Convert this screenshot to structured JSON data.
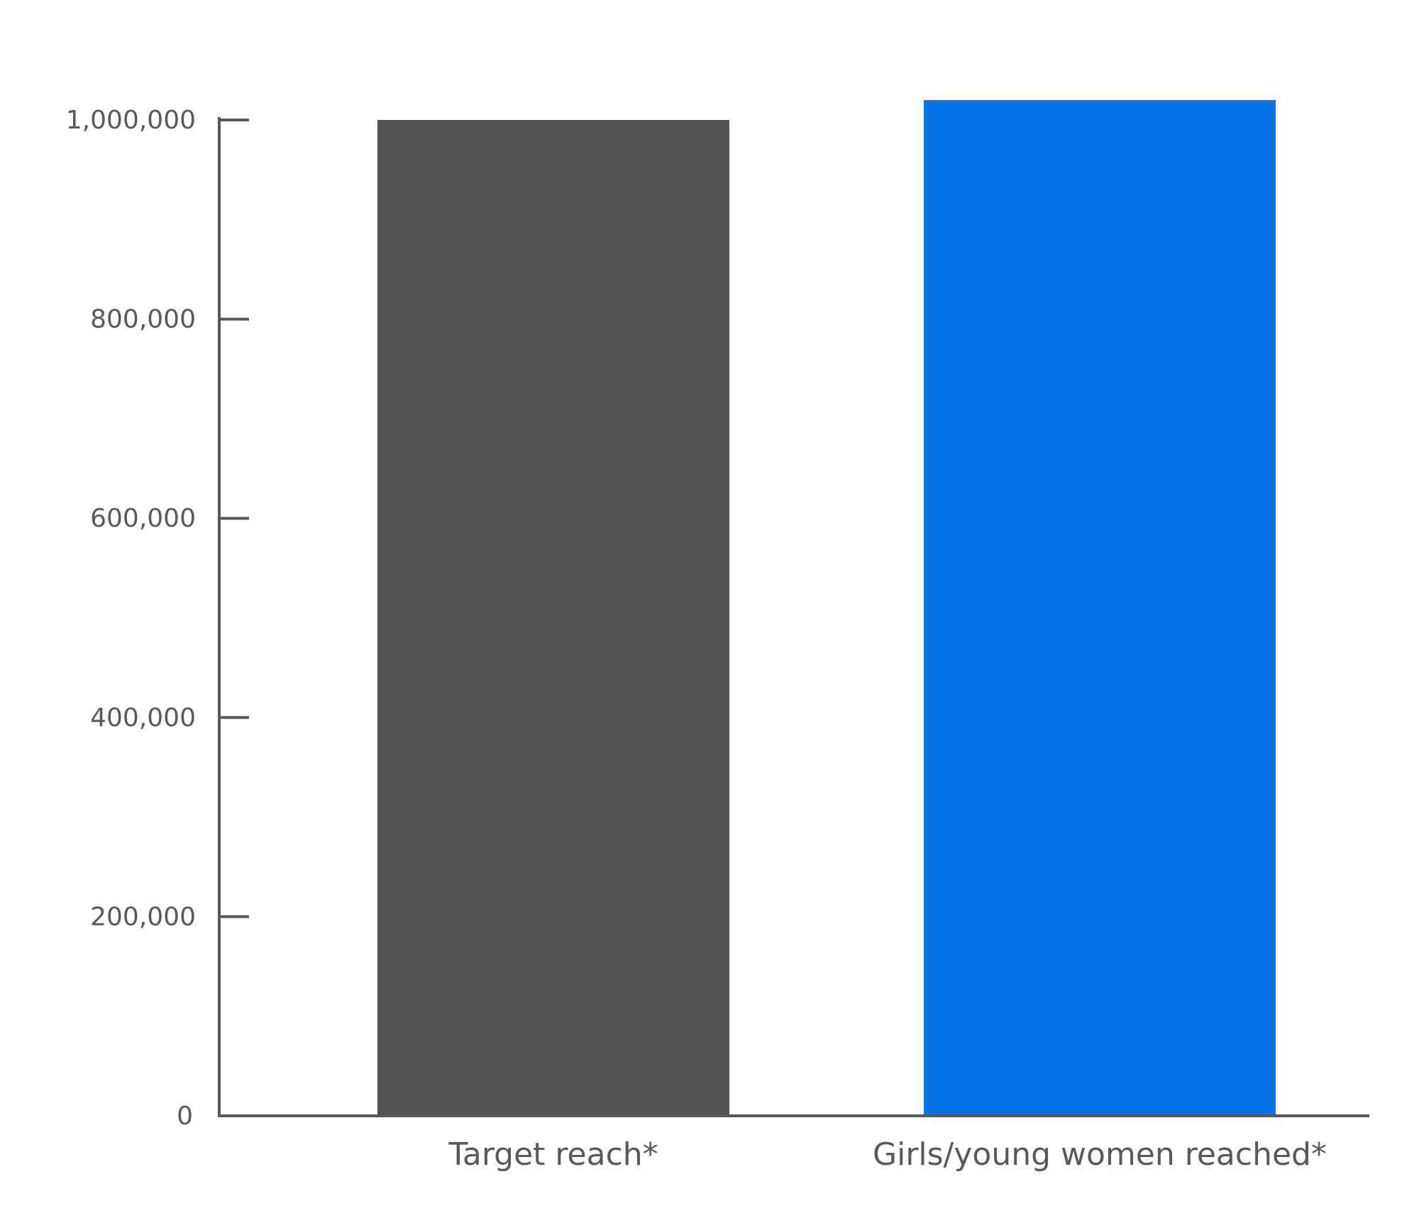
{
  "chart_data": {
    "type": "bar",
    "categories": [
      "Target reach*",
      "Girls/young women reached*"
    ],
    "values": [
      1000000,
      1020000
    ],
    "colors": [
      "#525453",
      "#0773e8"
    ],
    "ylim": [
      0,
      1000000
    ],
    "yticks": [
      0,
      {
        "value": 200000,
        "label": "200,000"
      },
      {
        "value": 400000,
        "label": "400,000"
      },
      {
        "value": 600000,
        "label": "600,000"
      },
      {
        "value": 800000,
        "label": "800,000"
      },
      {
        "value": 1000000,
        "label": "1,000,000"
      }
    ],
    "grid": false
  }
}
